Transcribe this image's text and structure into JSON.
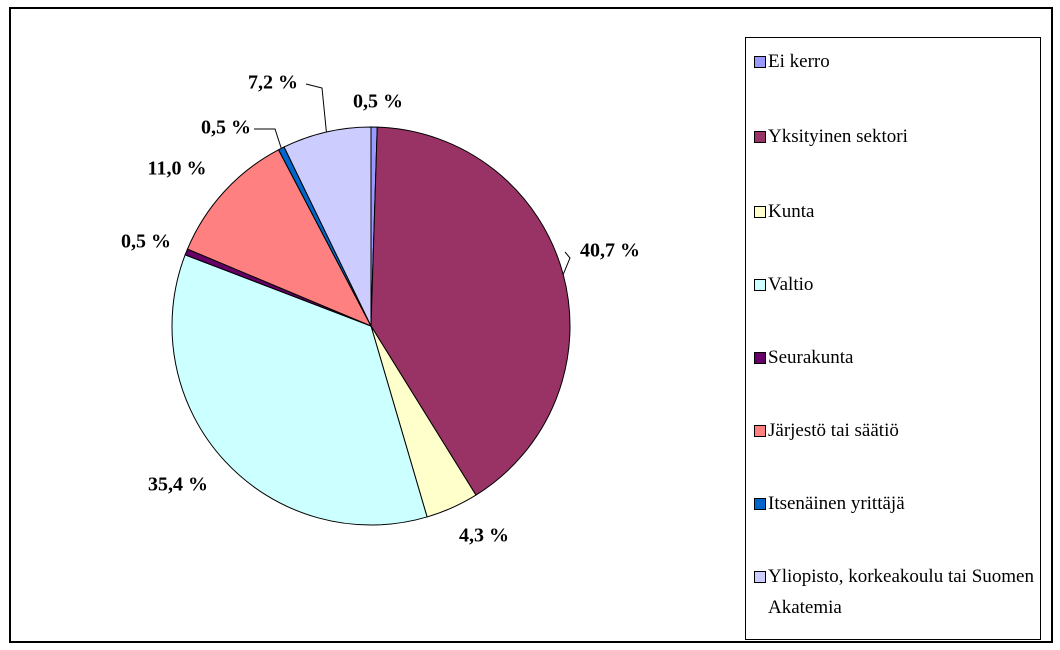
{
  "chart_data": {
    "type": "pie",
    "categories": [
      "Ei kerro",
      "Yksityinen sektori",
      "Kunta",
      "Valtio",
      "Seurakunta",
      "Järjestö tai säätiö",
      "Itsenäinen yrittäjä",
      "Yliopisto, korkeakoulu tai Suomen Akatemia"
    ],
    "values": [
      0.5,
      40.7,
      4.3,
      35.4,
      0.5,
      11.0,
      0.5,
      7.2
    ],
    "value_labels": [
      "0,5 %",
      "40,7 %",
      "4,3 %",
      "35,4 %",
      "0,5 %",
      "11,0 %",
      "0,5 %",
      "7,2 %"
    ],
    "colors": [
      "#9999ff",
      "#993366",
      "#ffffcc",
      "#ccffff",
      "#660066",
      "#ff8080",
      "#0066cc",
      "#ccccff"
    ],
    "legend": "right"
  }
}
